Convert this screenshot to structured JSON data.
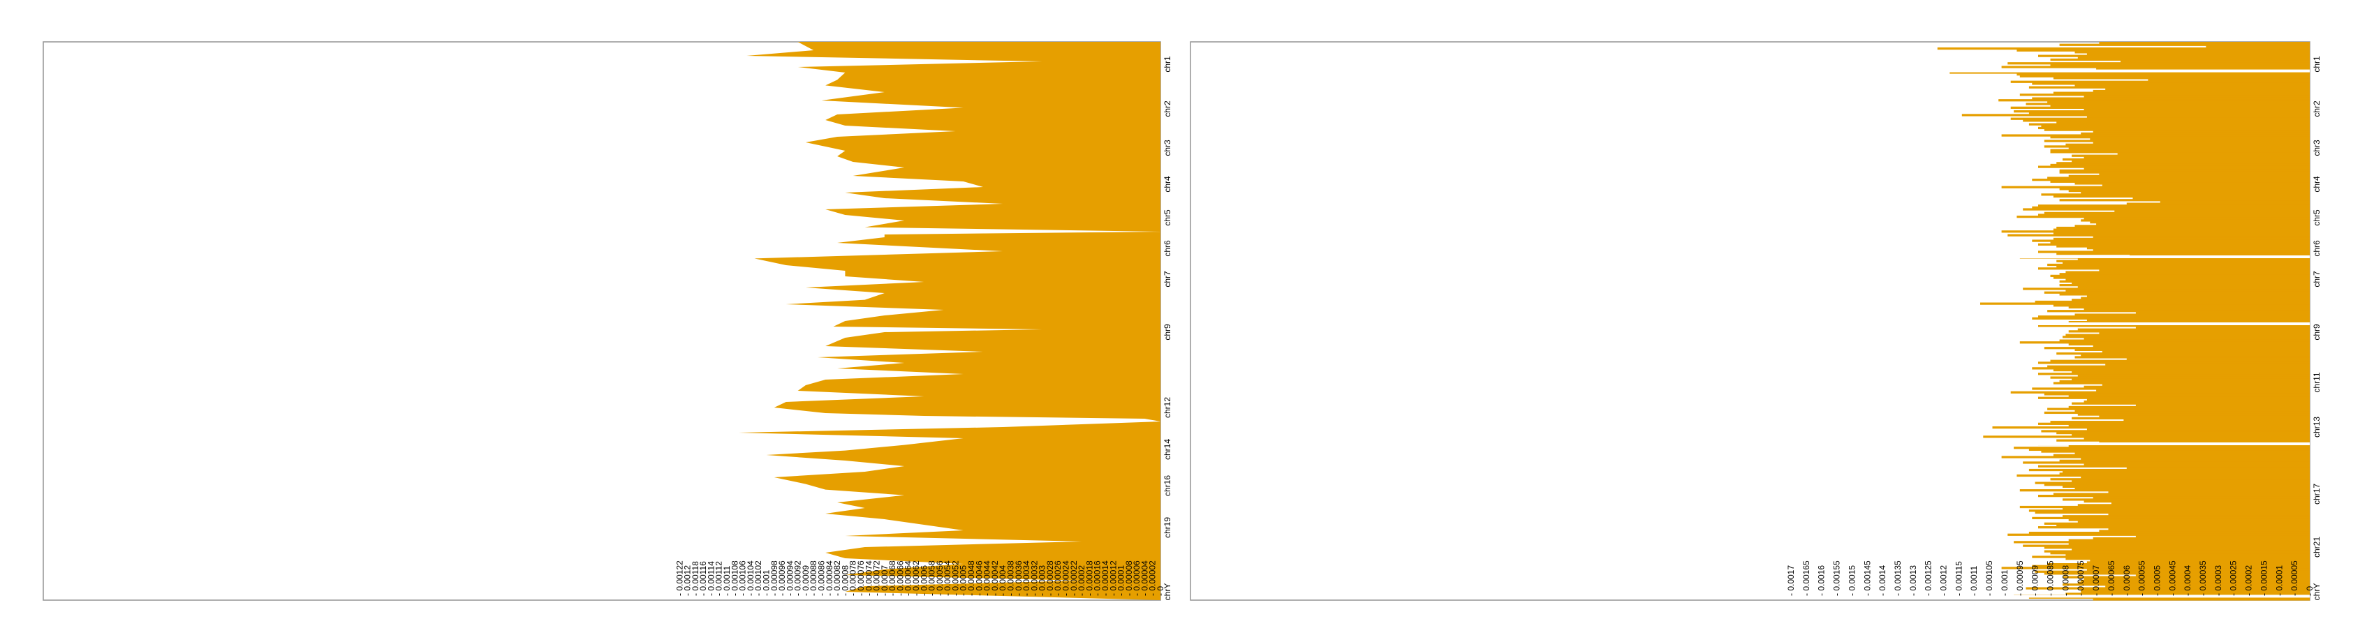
{
  "colors": {
    "fill": "#E69F00",
    "frame": "#9A9A9A",
    "background": "#FFFFFF",
    "text": "#000000"
  },
  "chart_data": [
    {
      "type": "area",
      "orientation": "horizontal",
      "xlim": [
        0.00124,
        0
      ],
      "x_reversed": true,
      "grid": false,
      "x_ticks": [
        "0.00122",
        "0.0012",
        "0.00118",
        "0.00116",
        "0.00114",
        "0.00112",
        "0.0011",
        "0.00108",
        "0.00106",
        "0.00104",
        "0.00102",
        "0.001",
        "0.00098",
        "0.00096",
        "0.00094",
        "0.00092",
        "0.0009",
        "0.00088",
        "0.00086",
        "0.00084",
        "0.00082",
        "0.0008",
        "0.00078",
        "0.00076",
        "0.00074",
        "0.00072",
        "0.0007",
        "0.00068",
        "0.00066",
        "0.00064",
        "0.00062",
        "0.0006",
        "0.00058",
        "0.00056",
        "0.00054",
        "0.00052",
        "0.0005",
        "0.00048",
        "0.00046",
        "0.00044",
        "0.00042",
        "0.0004",
        "0.00038",
        "0.00036",
        "0.00034",
        "0.00032",
        "0.0003",
        "0.00028",
        "0.00026",
        "0.00024",
        "0.00022",
        "0.0002",
        "0.00018",
        "0.00016",
        "0.00014",
        "0.00012",
        "0.0001",
        "0.00008",
        "0.00006",
        "0.00004",
        "0.00002",
        "0"
      ],
      "y_labels": [
        "chr1",
        "chr2",
        "chr3",
        "chr4",
        "chr5",
        "chr6",
        "chr7",
        "chr9",
        "chr12",
        "chr14",
        "chr16",
        "chr19",
        "chrY"
      ],
      "y_label_positions": [
        0.04,
        0.12,
        0.19,
        0.255,
        0.315,
        0.37,
        0.425,
        0.52,
        0.655,
        0.73,
        0.795,
        0.87,
        0.985
      ],
      "genome_position": [
        0.0,
        0.015,
        0.025,
        0.035,
        0.045,
        0.055,
        0.068,
        0.078,
        0.09,
        0.105,
        0.118,
        0.13,
        0.14,
        0.15,
        0.16,
        0.17,
        0.18,
        0.195,
        0.205,
        0.215,
        0.225,
        0.24,
        0.25,
        0.26,
        0.27,
        0.28,
        0.29,
        0.3,
        0.31,
        0.32,
        0.332,
        0.34,
        0.345,
        0.35,
        0.36,
        0.375,
        0.388,
        0.4,
        0.41,
        0.42,
        0.43,
        0.44,
        0.45,
        0.462,
        0.47,
        0.48,
        0.49,
        0.5,
        0.51,
        0.515,
        0.52,
        0.53,
        0.545,
        0.555,
        0.565,
        0.575,
        0.585,
        0.595,
        0.605,
        0.615,
        0.625,
        0.635,
        0.645,
        0.655,
        0.665,
        0.67,
        0.675,
        0.68,
        0.69,
        0.7,
        0.71,
        0.722,
        0.732,
        0.74,
        0.75,
        0.76,
        0.77,
        0.78,
        0.792,
        0.802,
        0.812,
        0.825,
        0.835,
        0.845,
        0.855,
        0.865,
        0.875,
        0.885,
        0.895,
        0.905,
        0.915,
        0.925,
        0.935,
        0.945,
        0.955,
        0.965,
        0.975,
        0.985,
        1.0
      ],
      "values": [
        0.00092,
        0.00088,
        0.00105,
        0.0003,
        0.00092,
        0.0008,
        0.00082,
        0.00085,
        0.0007,
        0.00086,
        0.0005,
        0.00082,
        0.00085,
        0.0008,
        0.00052,
        0.00082,
        0.0009,
        0.0008,
        0.00082,
        0.00078,
        0.00065,
        0.00078,
        0.0005,
        0.00045,
        0.0008,
        0.0007,
        0.0004,
        0.00085,
        0.0008,
        0.00065,
        0.00075,
        0.0,
        0.0007,
        0.0007,
        0.00082,
        0.0004,
        0.00103,
        0.00095,
        0.0008,
        0.0008,
        0.0006,
        0.0009,
        0.0007,
        0.00075,
        0.00095,
        0.00055,
        0.0007,
        0.0008,
        0.00083,
        0.0003,
        0.0007,
        0.0008,
        0.00085,
        0.00045,
        0.00087,
        0.00065,
        0.00082,
        0.0005,
        0.00085,
        0.0009,
        0.00092,
        0.0006,
        0.00095,
        0.00098,
        0.00085,
        0.0006,
        4e-05,
        0.0,
        0.0004,
        0.00107,
        0.0005,
        0.00065,
        0.0008,
        0.001,
        0.0008,
        0.00065,
        0.00075,
        0.00098,
        0.0009,
        0.00085,
        0.00065,
        0.00082,
        0.00075,
        0.00085,
        0.0007,
        0.0006,
        0.0005,
        0.0008,
        0.0002,
        0.00075,
        0.00085,
        0.0008,
        0.0005,
        0.0007,
        0.0008,
        0.0002,
        0.00075,
        0.0008,
        0.0
      ]
    },
    {
      "type": "bar",
      "orientation": "horizontal",
      "xlim": [
        0.0017,
        0
      ],
      "x_reversed": true,
      "grid": false,
      "x_ticks": [
        "0.0017",
        "0.00165",
        "0.0016",
        "0.00155",
        "0.0015",
        "0.00145",
        "0.0014",
        "0.00135",
        "0.0013",
        "0.00125",
        "0.0012",
        "0.00115",
        "0.0011",
        "0.00105",
        "0.001",
        "0.00095",
        "0.0009",
        "0.00085",
        "0.0008",
        "0.00075",
        "0.0007",
        "0.00065",
        "0.0006",
        "0.00055",
        "0.0005",
        "0.00045",
        "0.0004",
        "0.00035",
        "0.0003",
        "0.00025",
        "0.0002",
        "0.00015",
        "0.0001",
        "0.00005",
        "0"
      ],
      "y_labels": [
        "chr1",
        "chr2",
        "chr3",
        "chr4",
        "chr5",
        "chr6",
        "chr7",
        "chr9",
        "chr11",
        "chr13",
        "chr17",
        "chr21",
        "chrY"
      ],
      "y_label_positions": [
        0.04,
        0.12,
        0.19,
        0.255,
        0.315,
        0.37,
        0.425,
        0.52,
        0.61,
        0.69,
        0.81,
        0.905,
        0.985
      ],
      "bin_count": 300,
      "values": [
        0.00069,
        0.00082,
        0.00034,
        0.00122,
        0.00096,
        0.00077,
        0.00073,
        0.00089,
        0.00076,
        0.00085,
        0.00062,
        0.00099,
        0.00085,
        0.00101,
        0.0007,
        0.0003,
        0.00118,
        0.00096,
        0.00095,
        0.00084,
        0.00053,
        0.00098,
        0.00091,
        0.00077,
        0.00092,
        0.00067,
        0.00071,
        0.00084,
        0.00095,
        0.00074,
        0.00091,
        0.00102,
        0.00086,
        0.00093,
        0.00085,
        0.00098,
        0.00074,
        0.00097,
        0.00092,
        0.00114,
        0.00073,
        0.00098,
        0.00094,
        0.00083,
        0.00092,
        0.00088,
        0.00089,
        0.00087,
        0.00071,
        0.00075,
        0.00101,
        0.00085,
        0.00072,
        0.00087,
        0.00071,
        0.0008,
        0.00087,
        0.00079,
        0.00085,
        0.00085,
        0.00063,
        0.00078,
        0.00074,
        0.00081,
        0.00078,
        0.00083,
        0.00085,
        0.00089,
        0.00074,
        0.00082,
        0.00082,
        0.00069,
        0.00079,
        0.00086,
        0.00091,
        0.00085,
        0.00077,
        0.00068,
        0.00101,
        0.00082,
        0.00079,
        0.00075,
        0.00088,
        0.00084,
        0.00058,
        0.00082,
        0.00049,
        0.0006,
        0.00089,
        0.00091,
        0.00094,
        0.00064,
        0.00087,
        0.00089,
        0.00096,
        0.00074,
        0.00075,
        0.00072,
        0.0007,
        0.00077,
        0.00083,
        0.00084,
        0.00101,
        0.00084,
        0.00099,
        0.00071,
        0.00084,
        0.00091,
        0.00085,
        0.00089,
        0.00083,
        0.00073,
        0.00071,
        0.00089,
        0.00083,
        0.00059,
        0.00095,
        0.00076,
        0.00083,
        0.00081,
        0.00086,
        0.00083,
        0.00089,
        0.00069,
        0.0008,
        0.00082,
        0.00085,
        0.00084,
        0.0008,
        0.00082,
        0.00078,
        0.00082,
        0.00076,
        0.00094,
        0.0008,
        0.00087,
        0.00082,
        0.00073,
        0.00075,
        0.00078,
        0.0009,
        0.00108,
        0.00084,
        0.00079,
        0.00074,
        0.00086,
        0.00057,
        0.00077,
        0.00089,
        0.00091,
        0.00073,
        0.00079,
        0.00081,
        0.00089,
        0.00057,
        0.00076,
        0.00079,
        0.00069,
        0.0008,
        0.00081,
        0.00074,
        0.00082,
        0.00095,
        0.00079,
        0.00071,
        0.00087,
        0.00077,
        0.00068,
        0.00083,
        0.00075,
        0.00077,
        0.0006,
        0.00085,
        0.00089,
        0.00067,
        0.00086,
        0.00091,
        0.00084,
        0.00078,
        0.00089,
        0.00076,
        0.00085,
        0.00078,
        0.00082,
        0.00084,
        0.00068,
        0.00074,
        0.00091,
        0.0007,
        0.00098,
        0.00087,
        0.00079,
        0.00089,
        0.00073,
        0.00074,
        0.00078,
        0.00057,
        0.00079,
        0.00086,
        0.00077,
        0.00087,
        0.00076,
        0.00069,
        0.00078,
        0.00061,
        0.00085,
        0.00089,
        0.00079,
        0.00104,
        0.00073,
        0.00088,
        0.00083,
        0.00078,
        0.00107,
        0.00074,
        0.00083,
        0.00069,
        0.00089,
        0.00079,
        0.00097,
        0.00092,
        0.00088,
        0.00077,
        0.00084,
        0.00101,
        0.00075,
        0.00082,
        0.00094,
        0.00074,
        0.00089,
        0.0006,
        0.00092,
        0.00081,
        0.00082,
        0.00096,
        0.00075,
        0.00085,
        0.00078,
        0.0009,
        0.00087,
        0.00081,
        0.00077,
        0.00095,
        0.00066,
        0.00084,
        0.00089,
        0.00071,
        0.00081,
        0.00074,
        0.00065,
        0.00076,
        0.00095,
        0.00081,
        0.00092,
        0.0009,
        0.00066,
        0.00081,
        0.00091,
        0.00079,
        0.00076,
        0.00087,
        0.00083,
        0.00089,
        0.00066,
        0.00069,
        0.00092,
        0.00099,
        0.00057,
        0.00071,
        0.00079,
        0.00097,
        0.00079,
        0.00094,
        0.00087,
        0.00078,
        0.00087,
        0.00085,
        0.0008,
        0.00091,
        0.0008,
        0.00072,
        0.00073,
        0.00086,
        0.00091,
        0.00101,
        0.00073,
        0.0009,
        0.00087,
        0.00057,
        0.00081,
        0.00074,
        0.00075,
        0.00076,
        0.00081,
        0.00067,
        0.00093,
        0.00075,
        0.00075,
        0.0008,
        0.00097,
        0.00092,
        0.00071
      ],
      "gaps": [
        0.052,
        0.385,
        0.505,
        0.72,
        0.993
      ]
    }
  ]
}
